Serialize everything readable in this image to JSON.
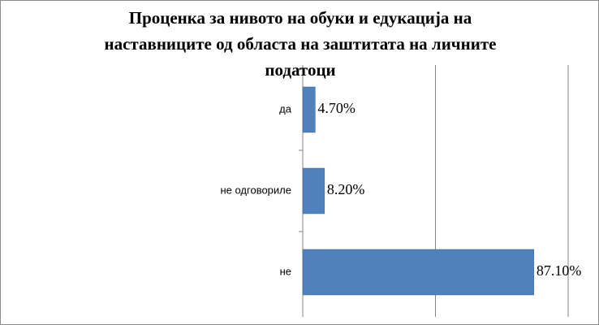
{
  "chart_data": {
    "type": "bar",
    "orientation": "horizontal",
    "title": "Проценка за нивото на обуки и едукација на наставниците од областа на заштитата на личните податоци",
    "categories": [
      "да",
      "не одговориле",
      "не"
    ],
    "values": [
      4.7,
      8.2,
      87.1
    ],
    "value_labels": [
      "4.70%",
      "8.20%",
      "87.10%"
    ],
    "color": "#4f81bd",
    "xlim": [
      0,
      100
    ],
    "xticks": [
      0,
      50,
      100
    ],
    "grid": true
  }
}
